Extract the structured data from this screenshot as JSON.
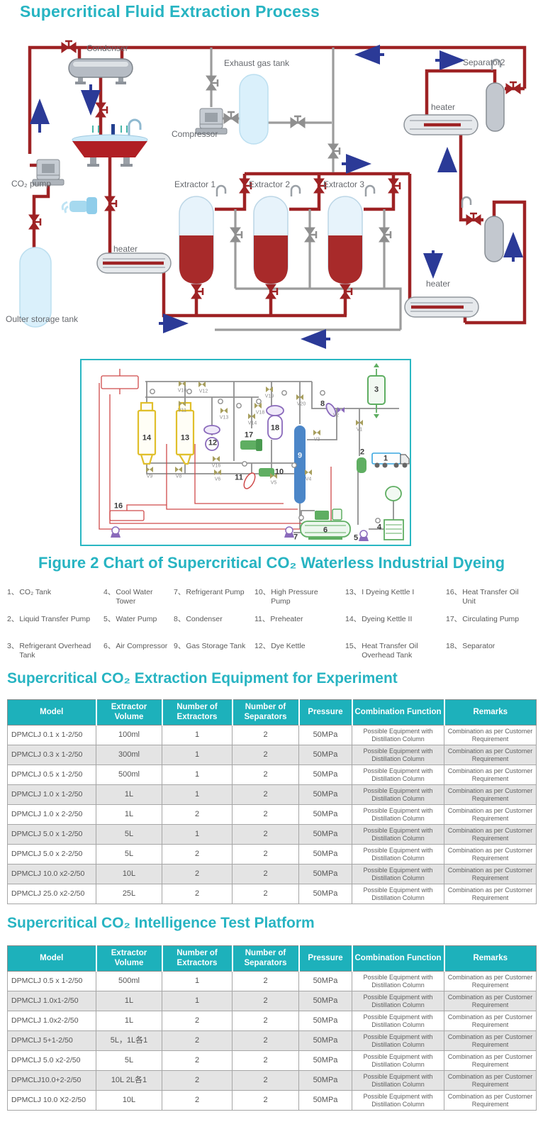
{
  "page": {
    "title": "Supercritical Fluid Extraction Process"
  },
  "colors": {
    "accent": "#27b4c2",
    "table_header": "#1db1bb",
    "pipe_red": "#9e2224",
    "pipe_gray": "#9c9c9c",
    "arrow_navy": "#2b3a97"
  },
  "figure1": {
    "labels": {
      "condenser": "Condenser",
      "exhaust_gas_tank": "Exhaust gas tank",
      "compressor": "Compressor",
      "separator2": "Separator2",
      "heater_top_right": "heater",
      "co2_pump": "CO₂ pump",
      "extractor1": "Extractor 1",
      "extractor2": "Extractor 2",
      "extractor3": "Extractor 3",
      "heater_left": "heater",
      "heater_bottom_right": "heater",
      "outer_storage_tank": "Oulter storage tank"
    }
  },
  "figure2": {
    "caption": "Figure 2 Chart of Supercritical CO₂ Waterless Industrial Dyeing",
    "equipment_numbers": [
      "14",
      "13",
      "12",
      "17",
      "18",
      "9",
      "8",
      "3",
      "2",
      "1",
      "16",
      "11",
      "10",
      "7",
      "6",
      "5",
      "4"
    ],
    "valve_labels": [
      "V10",
      "V12",
      "V11",
      "V13",
      "V14",
      "V18",
      "V19",
      "V20",
      "V2",
      "V1",
      "V3",
      "V9",
      "V8",
      "V16",
      "V6",
      "V5",
      "V4"
    ]
  },
  "legend": {
    "items": [
      {
        "num": "1、",
        "label": "CO₂ Tank"
      },
      {
        "num": "2、",
        "label": "Liquid Transfer Pump"
      },
      {
        "num": "3、",
        "label": "Refrigerant Overhead Tank"
      },
      {
        "num": "4、",
        "label": "Cool Water Tower"
      },
      {
        "num": "5、",
        "label": "Water Pump"
      },
      {
        "num": "6、",
        "label": "Air Compressor"
      },
      {
        "num": "7、",
        "label": "Refrigerant Pump"
      },
      {
        "num": "8、",
        "label": "Condenser"
      },
      {
        "num": "9、",
        "label": "Gas Storage Tank"
      },
      {
        "num": "10、",
        "label": "High Pressure Pump"
      },
      {
        "num": "11、",
        "label": "Preheater"
      },
      {
        "num": "12、",
        "label": "Dye Kettle"
      },
      {
        "num": "13、",
        "label": "I Dyeing Kettle I"
      },
      {
        "num": "14、",
        "label": "Dyeing Kettle II"
      },
      {
        "num": "15、",
        "label": "Heat Transfer Oil Overhead Tank"
      },
      {
        "num": "16、",
        "label": "Heat Transfer Oil Unit"
      },
      {
        "num": "17、",
        "label": "Circulating Pump"
      },
      {
        "num": "18、",
        "label": "Separator"
      }
    ]
  },
  "sections": {
    "experiment_title": "Supercritical CO₂ Extraction Equipment for Experiment",
    "platform_title": "Supercritical CO₂ Intelligence Test Platform"
  },
  "table1": {
    "headers": [
      "Model",
      "Extractor Volume",
      "Number of Extractors",
      "Number of Separators",
      "Pressure",
      "Combination Function",
      "Remarks"
    ],
    "rows": [
      [
        "DPMCLJ 0.1 x 1-2/50",
        "100ml",
        "1",
        "2",
        "50MPa",
        "Possible Equipment with Distillation Column",
        "Combination as per Customer Requirement"
      ],
      [
        "DPMCLJ 0.3 x 1-2/50",
        "300ml",
        "1",
        "2",
        "50MPa",
        "Possible Equipment with Distillation Column",
        "Combination as per Customer Requirement"
      ],
      [
        "DPMCLJ 0.5 x 1-2/50",
        "500ml",
        "1",
        "2",
        "50MPa",
        "Possible Equipment with Distillation Column",
        "Combination as per Customer Requirement"
      ],
      [
        "DPMCLJ 1.0 x 1-2/50",
        "1L",
        "1",
        "2",
        "50MPa",
        "Possible Equipment with Distillation Column",
        "Combination as per Customer Requirement"
      ],
      [
        "DPMCLJ 1.0 x 2-2/50",
        "1L",
        "2",
        "2",
        "50MPa",
        "Possible Equipment with Distillation Column",
        "Combination as per Customer Requirement"
      ],
      [
        "DPMCLJ 5.0 x 1-2/50",
        "5L",
        "1",
        "2",
        "50MPa",
        "Possible Equipment with Distillation Column",
        "Combination as per Customer Requirement"
      ],
      [
        "DPMCLJ 5.0 x 2-2/50",
        "5L",
        "2",
        "2",
        "50MPa",
        "Possible Equipment with Distillation Column",
        "Combination as per Customer Requirement"
      ],
      [
        "DPMCLJ 10.0 x2-2/50",
        "10L",
        "2",
        "2",
        "50MPa",
        "Possible Equipment with Distillation Column",
        "Combination as per Customer Requirement"
      ],
      [
        "DPMCLJ 25.0 x2-2/50",
        "25L",
        "2",
        "2",
        "50MPa",
        "Possible Equipment with Distillation Column",
        "Combination as per Customer Requirement"
      ]
    ]
  },
  "table2": {
    "headers": [
      "Model",
      "Extractor Volume",
      "Number of Extractors",
      "Number of Separators",
      "Pressure",
      "Combination Function",
      "Remarks"
    ],
    "rows": [
      [
        "DPMCLJ 0.5 x 1-2/50",
        "500ml",
        "1",
        "2",
        "50MPa",
        "Possible Equipment with Distillation Column",
        "Combination as per Customer Requirement"
      ],
      [
        "DPMCLJ 1.0x1-2/50",
        "1L",
        "1",
        "2",
        "50MPa",
        "Possible Equipment with Distillation Column",
        "Combination as per Customer Requirement"
      ],
      [
        "DPMCLJ 1.0x2-2/50",
        "1L",
        "2",
        "2",
        "50MPa",
        "Possible Equipment with Distillation Column",
        "Combination as per Customer Requirement"
      ],
      [
        "DPMCLJ 5+1-2/50",
        "5L，1L各1",
        "2",
        "2",
        "50MPa",
        "Possible Equipment with Distillation Column",
        "Combination as per Customer Requirement"
      ],
      [
        "DPMCLJ 5.0 x2-2/50",
        "5L",
        "2",
        "2",
        "50MPa",
        "Possible Equipment with Distillation Column",
        "Combination as per Customer Requirement"
      ],
      [
        "DPMCLJ10.0+2-2/50",
        "10L 2L各1",
        "2",
        "2",
        "50MPa",
        "Possible Equipment with Distillation Column",
        "Combination as per Customer Requirement"
      ],
      [
        "DPMCLJ 10.0 X2-2/50",
        "10L",
        "2",
        "2",
        "50MPa",
        "Possible Equipment with Distillation Column",
        "Combination as per Customer Requirement"
      ]
    ]
  }
}
